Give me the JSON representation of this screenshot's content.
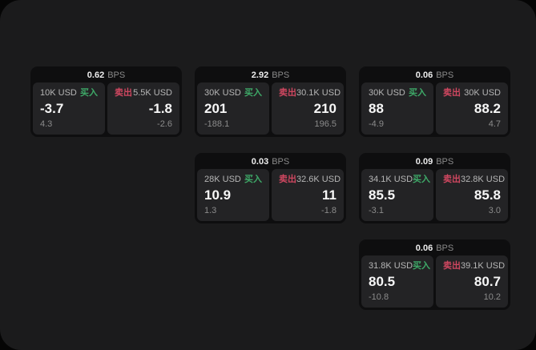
{
  "labels": {
    "bps": "BPS",
    "buy": "买入",
    "sell": "卖出"
  },
  "colors": {
    "background": "#1b1b1c",
    "card": "#0e0e0f",
    "panel": "#232325",
    "buy_green": "#3ea968",
    "sell_red": "#cf4760",
    "primary_text": "#f7f7f7",
    "muted_text": "#8b8b8b"
  },
  "cards": [
    {
      "spread_bps": "0.62",
      "buy": {
        "size": "10K USD",
        "price": "-3.7",
        "delta": "4.3"
      },
      "sell": {
        "size": "5.5K USD",
        "price": "-1.8",
        "delta": "-2.6"
      }
    },
    {
      "spread_bps": "2.92",
      "buy": {
        "size": "30K USD",
        "price": "201",
        "delta": "-188.1"
      },
      "sell": {
        "size": "30.1K USD",
        "price": "210",
        "delta": "196.5"
      }
    },
    {
      "spread_bps": "0.06",
      "buy": {
        "size": "30K USD",
        "price": "88",
        "delta": "-4.9"
      },
      "sell": {
        "size": "30K USD",
        "price": "88.2",
        "delta": "4.7"
      }
    },
    {
      "spread_bps": "0.03",
      "buy": {
        "size": "28K USD",
        "price": "10.9",
        "delta": "1.3"
      },
      "sell": {
        "size": "32.6K USD",
        "price": "11",
        "delta": "-1.8"
      }
    },
    {
      "spread_bps": "0.09",
      "buy": {
        "size": "34.1K USD",
        "price": "85.5",
        "delta": "-3.1"
      },
      "sell": {
        "size": "32.8K USD",
        "price": "85.8",
        "delta": "3.0"
      }
    },
    {
      "spread_bps": "0.06",
      "buy": {
        "size": "31.8K USD",
        "price": "80.5",
        "delta": "-10.8"
      },
      "sell": {
        "size": "39.1K USD",
        "price": "80.7",
        "delta": "10.2"
      }
    }
  ]
}
